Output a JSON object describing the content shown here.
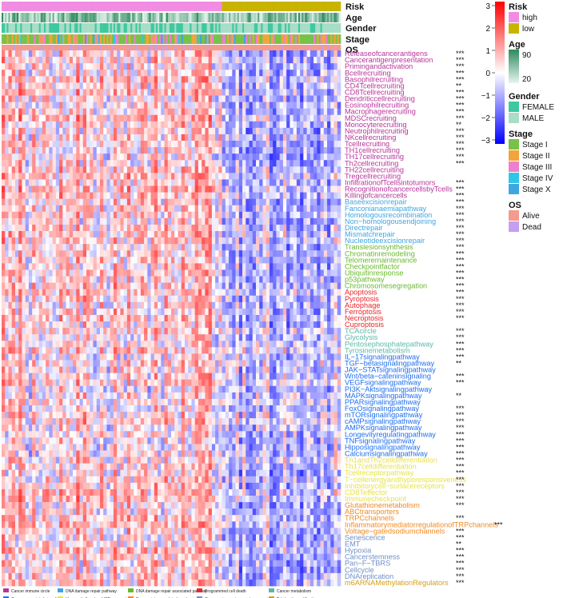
{
  "chart_data": {
    "type": "heatmap",
    "title": "",
    "samples": 200,
    "low_risk_fraction": 0.35,
    "color_scale": {
      "min": -3,
      "max": 3,
      "ticks": [
        "3",
        "2",
        "1",
        "0",
        "−1",
        "−2",
        "−3"
      ],
      "colors": [
        "#0000ff",
        "#ffffff",
        "#ff0000"
      ]
    },
    "annotation_tracks": [
      "Risk",
      "Age",
      "Gender",
      "Stage",
      "OS"
    ],
    "legends": [
      {
        "title": "Risk",
        "items": [
          {
            "label": "high",
            "color": "#f28ce3"
          },
          {
            "label": "low",
            "color": "#c8b400"
          }
        ]
      },
      {
        "title": "Age",
        "gradient": [
          "#2d8a5e",
          "#e6f5f0"
        ],
        "ticks": [
          "90",
          "20"
        ]
      },
      {
        "title": "Gender",
        "items": [
          {
            "label": "FEMALE",
            "color": "#3dc9a0"
          },
          {
            "label": "MALE",
            "color": "#a8ddc8"
          }
        ]
      },
      {
        "title": "Stage",
        "items": [
          {
            "label": "Stage I",
            "color": "#78c24a"
          },
          {
            "label": "Stage II",
            "color": "#f2a53a"
          },
          {
            "label": "Stage III",
            "color": "#ef7fcf"
          },
          {
            "label": "Stage IV",
            "color": "#2fc6e6"
          },
          {
            "label": "Stage X",
            "color": "#3ea6e0"
          }
        ]
      },
      {
        "title": "OS",
        "items": [
          {
            "label": "Alive",
            "color": "#f49a8e"
          },
          {
            "label": "Dead",
            "color": "#c69ef0"
          }
        ]
      }
    ],
    "categories": [
      {
        "label": "Cancer immune circle",
        "color": "#b8349a"
      },
      {
        "label": "DNA damage repair pathway",
        "color": "#3ea6e0"
      },
      {
        "label": "DNA damage repair associated pathway",
        "color": "#6ab82e"
      },
      {
        "label": "Programmed cell death",
        "color": "#e8252a"
      },
      {
        "label": "Cancer metabolism",
        "color": "#5bb8a8"
      },
      {
        "label": "Cancer associated signaling pathway",
        "color": "#1e6ff0"
      },
      {
        "label": "Immune hallmarks of ICB responsiveness",
        "color": "#e8e24a"
      },
      {
        "label": "Drug resistance related mechanism",
        "color": "#f08a24"
      },
      {
        "label": "Cancer microenvironment progression related process",
        "color": "#7090c8"
      },
      {
        "label": "Epigenetic modification",
        "color": "#d4a017"
      }
    ],
    "rows": [
      {
        "label": "Releaseofcancerantigens",
        "cat": 0,
        "sig": "***"
      },
      {
        "label": "Cancerantigenpresentation",
        "cat": 0,
        "sig": "***"
      },
      {
        "label": "Primingandactivation",
        "cat": 0,
        "sig": "***"
      },
      {
        "label": "Bcellrecruiting",
        "cat": 0,
        "sig": "***"
      },
      {
        "label": "Basophilrecruiting",
        "cat": 0,
        "sig": "***"
      },
      {
        "label": "CD4Tcellrecruiting",
        "cat": 0,
        "sig": "**"
      },
      {
        "label": "CD8Tcellrecruiting",
        "cat": 0,
        "sig": "***"
      },
      {
        "label": "Dendriticcellrecruiting",
        "cat": 0,
        "sig": "***"
      },
      {
        "label": "Eosinophilrecruiting",
        "cat": 0,
        "sig": "***"
      },
      {
        "label": "Macrophagerecruiting",
        "cat": 0,
        "sig": "***"
      },
      {
        "label": "MDSCrecruiting",
        "cat": 0,
        "sig": "***"
      },
      {
        "label": "Monocyterecruiting",
        "cat": 0,
        "sig": "**"
      },
      {
        "label": "Neutrophilrecruiting",
        "cat": 0,
        "sig": "***"
      },
      {
        "label": "NKcellrecruiting",
        "cat": 0,
        "sig": "***"
      },
      {
        "label": "Tcellrecruiting",
        "cat": 0,
        "sig": "***"
      },
      {
        "label": "TH1cellrecruiting",
        "cat": 0,
        "sig": "***"
      },
      {
        "label": "TH17cellrecruiting",
        "cat": 0,
        "sig": "***"
      },
      {
        "label": "Th2cellrecruiting",
        "cat": 0,
        "sig": "***"
      },
      {
        "label": "TH22cellrecruiting",
        "cat": 0,
        "sig": ""
      },
      {
        "label": "Tregcellrecruiting",
        "cat": 0,
        "sig": ""
      },
      {
        "label": "InfiltrationofTcellsintotumors",
        "cat": 0,
        "sig": "***"
      },
      {
        "label": "RecognitionofcancercellsbyTcells",
        "cat": 0,
        "sig": "***"
      },
      {
        "label": "Killingofcancercells",
        "cat": 0,
        "sig": "***"
      },
      {
        "label": "Baseexcisionrepair",
        "cat": 1,
        "sig": "***"
      },
      {
        "label": "Fanconianaemiapathway",
        "cat": 1,
        "sig": "***"
      },
      {
        "label": "Homologousrecombination",
        "cat": 1,
        "sig": "***"
      },
      {
        "label": "Non−homologousendjoining",
        "cat": 1,
        "sig": "***"
      },
      {
        "label": "Directrepair",
        "cat": 1,
        "sig": "***"
      },
      {
        "label": "Mismatchrepair",
        "cat": 1,
        "sig": "***"
      },
      {
        "label": "Nucleotideexcisionrepair",
        "cat": 1,
        "sig": "***"
      },
      {
        "label": "Translesionsynthesis",
        "cat": 2,
        "sig": "***"
      },
      {
        "label": "Chromatinremodeling",
        "cat": 2,
        "sig": "***"
      },
      {
        "label": "Telomeremaintenance",
        "cat": 2,
        "sig": "***"
      },
      {
        "label": "Checkpointfactor",
        "cat": 2,
        "sig": "***"
      },
      {
        "label": "Ubiquitinresponse",
        "cat": 2,
        "sig": "***"
      },
      {
        "label": "p53pathway",
        "cat": 2,
        "sig": "***"
      },
      {
        "label": "Chromosomesegregation",
        "cat": 2,
        "sig": "***"
      },
      {
        "label": "Apoptosis",
        "cat": 3,
        "sig": "***"
      },
      {
        "label": "Pyroptosis",
        "cat": 3,
        "sig": "***"
      },
      {
        "label": "Autophage",
        "cat": 3,
        "sig": "***"
      },
      {
        "label": "Ferroptosis",
        "cat": 3,
        "sig": "***"
      },
      {
        "label": "Necroptosis",
        "cat": 3,
        "sig": "***"
      },
      {
        "label": "Cuproptosis",
        "cat": 3,
        "sig": ""
      },
      {
        "label": "TCAcircle",
        "cat": 4,
        "sig": "***"
      },
      {
        "label": "Glycolysis",
        "cat": 4,
        "sig": "***"
      },
      {
        "label": "Pentosephosphatepathway",
        "cat": 4,
        "sig": "***"
      },
      {
        "label": "Tyrosinemetabolism",
        "cat": 4,
        "sig": "***"
      },
      {
        "label": "IL−17signalingpathway",
        "cat": 5,
        "sig": "***"
      },
      {
        "label": "TGF−betasignalingpathway",
        "cat": 5,
        "sig": "**"
      },
      {
        "label": "JAK−STATsignalingpathway",
        "cat": 5,
        "sig": ""
      },
      {
        "label": "Wnt/beta−cateninsignaling",
        "cat": 5,
        "sig": "***"
      },
      {
        "label": "VEGFsignalingpathway",
        "cat": 5,
        "sig": "***"
      },
      {
        "label": "PI3K−Aktsignalingpathway",
        "cat": 5,
        "sig": ""
      },
      {
        "label": "MAPKsignalingpathway",
        "cat": 5,
        "sig": "**"
      },
      {
        "label": "PPARsignalingpathway",
        "cat": 5,
        "sig": ""
      },
      {
        "label": "FoxOsignalingpathway",
        "cat": 5,
        "sig": "***"
      },
      {
        "label": "mTORsignalingpathway",
        "cat": 5,
        "sig": "***"
      },
      {
        "label": "cAMPsignalingpathway",
        "cat": 5,
        "sig": "***"
      },
      {
        "label": "AMPKsignalingpathway",
        "cat": 5,
        "sig": "***"
      },
      {
        "label": "Longevityregulatingpathway",
        "cat": 5,
        "sig": "***"
      },
      {
        "label": "TNFsignalingpathway",
        "cat": 5,
        "sig": "***"
      },
      {
        "label": "Hipposignalingpathway",
        "cat": 5,
        "sig": "***"
      },
      {
        "label": "Calciumsignalingpathway",
        "cat": 5,
        "sig": "***"
      },
      {
        "label": "Th1andTh2celldifferentiation",
        "cat": 6,
        "sig": "***"
      },
      {
        "label": "Th17celldifferentiation",
        "cat": 6,
        "sig": "***"
      },
      {
        "label": "Tcellreceptorpathway",
        "cat": 6,
        "sig": "***"
      },
      {
        "label": "T−cellenergyandhyporesponsiveness",
        "cat": 6,
        "sig": "***"
      },
      {
        "label": "Inhibitorycell−surfacereceptors",
        "cat": 6,
        "sig": "***"
      },
      {
        "label": "CD8Teffector",
        "cat": 6,
        "sig": "***"
      },
      {
        "label": "Immunecheckpoint",
        "cat": 6,
        "sig": "***"
      },
      {
        "label": "Glutathionemetabolism",
        "cat": 7,
        "sig": "***"
      },
      {
        "label": "ABCtransporters",
        "cat": 7,
        "sig": ""
      },
      {
        "label": "TRPCchannels",
        "cat": 7,
        "sig": "***"
      },
      {
        "label": "InflammatorymediatorregulationofTRPchannels",
        "cat": 7,
        "sig": "***"
      },
      {
        "label": "Voltage−gatedsodiumchannels",
        "cat": 7,
        "sig": "***"
      },
      {
        "label": "Senescence",
        "cat": 8,
        "sig": "***"
      },
      {
        "label": "EMT",
        "cat": 8,
        "sig": "**"
      },
      {
        "label": "Hypoxia",
        "cat": 8,
        "sig": "***"
      },
      {
        "label": "Cancerstemness",
        "cat": 8,
        "sig": "***"
      },
      {
        "label": "Pan−F−TBRS",
        "cat": 8,
        "sig": "***"
      },
      {
        "label": "Cellcycle",
        "cat": 8,
        "sig": "***"
      },
      {
        "label": "DNAreplication",
        "cat": 8,
        "sig": "***"
      },
      {
        "label": "m6ARNAMethylationRegulators",
        "cat": 9,
        "sig": "***"
      }
    ]
  }
}
